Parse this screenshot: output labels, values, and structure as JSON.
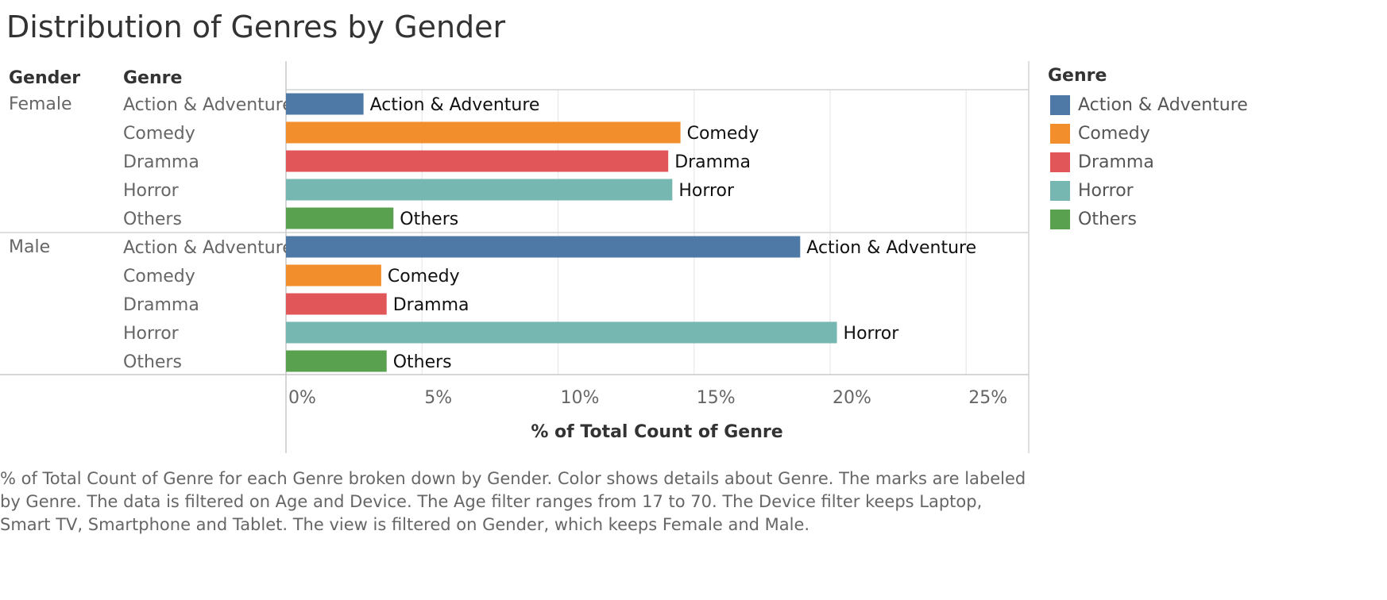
{
  "chart_data": {
    "type": "bar",
    "orientation": "horizontal",
    "title": "Distribution of Genres by Gender",
    "xlabel": "% of Total Count of Genre",
    "row_headers": [
      "Gender",
      "Genre"
    ],
    "xlim": [
      0,
      27.3
    ],
    "x_ticks": [
      0,
      5,
      10,
      15,
      20,
      25
    ],
    "x_tick_labels": [
      "0%",
      "5%",
      "10%",
      "15%",
      "20%",
      "25%"
    ],
    "grid": true,
    "legend": {
      "title": "Genre",
      "position": "right"
    },
    "categories": [
      "Action & Adventure",
      "Comedy",
      "Dramma",
      "Horror",
      "Others"
    ],
    "groups": [
      {
        "name": "Female",
        "values": [
          2.85,
          14.5,
          14.05,
          14.2,
          3.95
        ]
      },
      {
        "name": "Male",
        "values": [
          18.9,
          3.5,
          3.7,
          20.25,
          3.7
        ]
      }
    ],
    "colors": {
      "Action & Adventure": "#4e79a7",
      "Comedy": "#f28e2b",
      "Dramma": "#e15759",
      "Horror": "#76b7b2",
      "Others": "#59a14f"
    }
  },
  "caption": "% of Total Count of Genre for each Genre broken down by Gender.  Color shows details about Genre.  The marks are labeled by Genre. The data is filtered on Age and Device. The Age filter ranges from 17 to 70. The Device filter keeps Laptop, Smart TV, Smartphone and Tablet. The view is filtered on Gender, which keeps Female and Male."
}
